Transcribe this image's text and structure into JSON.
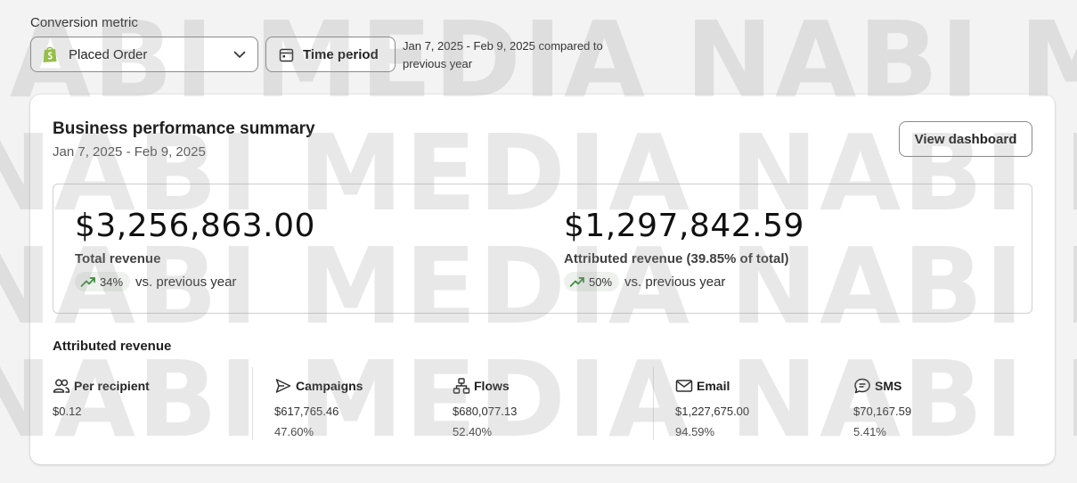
{
  "filters": {
    "conversion_label": "Conversion metric",
    "metric_value": "Placed Order",
    "time_button_label": "Time period",
    "date_note": "Jan 7, 2025 - Feb 9, 2025 compared to previous year"
  },
  "card": {
    "title": "Business performance summary",
    "date_range": "Jan 7, 2025 - Feb 9, 2025",
    "view_button": "View dashboard"
  },
  "summary": {
    "total": {
      "value": "$3,256,863.00",
      "label": "Total revenue",
      "change": "34%",
      "vs": "vs. previous year"
    },
    "attributed": {
      "value": "$1,297,842.59",
      "label": "Attributed revenue (39.85% of total)",
      "change": "50%",
      "vs": "vs. previous year"
    }
  },
  "attributed_section": {
    "title": "Attributed revenue",
    "stats": [
      {
        "icon": "people-icon",
        "label": "Per recipient",
        "value": "$0.12",
        "pct": ""
      },
      {
        "icon": "send-icon",
        "label": "Campaigns",
        "value": "$617,765.46",
        "pct": "47.60%"
      },
      {
        "icon": "flow-icon",
        "label": "Flows",
        "value": "$680,077.13",
        "pct": "52.40%"
      },
      {
        "icon": "email-icon",
        "label": "Email",
        "value": "$1,227,675.00",
        "pct": "94.59%"
      },
      {
        "icon": "sms-icon",
        "label": "SMS",
        "value": "$70,167.59",
        "pct": "5.41%"
      }
    ]
  },
  "watermark": {
    "text": "NABI MEDIA NABI MEDIA NABI MEDIA NAB"
  },
  "colors": {
    "trend_green": "#3a8a3a",
    "shop_green": "#95bf47"
  }
}
